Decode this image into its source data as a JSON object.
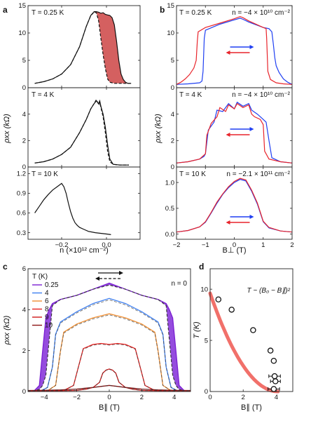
{
  "panels": {
    "a": {
      "label": "a"
    },
    "b": {
      "label": "b"
    },
    "c": {
      "label": "c"
    },
    "d": {
      "label": "d"
    }
  },
  "colors": {
    "red": "#e8242b",
    "blue": "#1f3ff2",
    "fill_red": "#cf4f4f",
    "fill_purple": "#7b1fd6"
  },
  "chart_data": [
    {
      "id": "a-top",
      "type": "area",
      "annotation": "T = 0.25 K",
      "ylabel": "",
      "ylim": [
        0,
        15
      ],
      "yticks": [
        "0",
        "5",
        "10",
        "15"
      ],
      "x": [
        -0.32,
        -0.28,
        -0.24,
        -0.2,
        -0.16,
        -0.12,
        -0.09,
        -0.07,
        -0.055,
        -0.045,
        -0.035,
        -0.025,
        -0.015,
        -0.005,
        0.005,
        0.015,
        0.025,
        0.035,
        0.045,
        0.055,
        0.065,
        0.075,
        0.085,
        0.095,
        0.11
      ],
      "series": [
        {
          "style": "solid",
          "values": [
            0.8,
            1.1,
            1.6,
            2.5,
            4.2,
            7.5,
            11.2,
            13.2,
            13.9,
            13.9,
            13.8,
            13.6,
            13.7,
            13.4,
            13.3,
            13.2,
            12.8,
            11.5,
            8.5,
            5.0,
            2.5,
            1.5,
            1.0,
            0.8,
            0.8
          ]
        },
        {
          "style": "dashed",
          "values": [
            0.8,
            1.1,
            1.6,
            2.5,
            4.2,
            7.5,
            11.2,
            13.2,
            13.8,
            13.7,
            12.2,
            9.0,
            6.0,
            3.5,
            1.6,
            1.0,
            0.9,
            0.8,
            0.8,
            0.8,
            0.8,
            0.8,
            0.8,
            0.8,
            0.8
          ]
        }
      ]
    },
    {
      "id": "a-mid",
      "type": "line",
      "annotation": "T = 4 K",
      "ylabel": "ρxx (kΩ)",
      "ylim": [
        0,
        6
      ],
      "yticks": [
        "0",
        "2",
        "4"
      ],
      "x": [
        -0.32,
        -0.28,
        -0.24,
        -0.2,
        -0.16,
        -0.12,
        -0.09,
        -0.07,
        -0.055,
        -0.045,
        -0.035,
        -0.03,
        -0.025,
        -0.015,
        -0.005,
        0.005,
        0.015,
        0.03,
        0.06,
        0.1
      ],
      "series": [
        {
          "style": "solid",
          "values": [
            0.3,
            0.4,
            0.6,
            0.95,
            1.5,
            2.6,
            3.6,
            4.4,
            4.8,
            5.0,
            4.8,
            5.0,
            4.6,
            4.0,
            3.0,
            1.7,
            0.6,
            0.2,
            0.15,
            0.15
          ]
        },
        {
          "style": "dashed",
          "values": [
            0.3,
            0.4,
            0.6,
            0.95,
            1.5,
            2.6,
            3.6,
            4.4,
            4.8,
            5.1,
            4.7,
            4.9,
            4.5,
            3.8,
            2.6,
            1.2,
            0.4,
            0.2,
            0.15,
            0.15
          ]
        }
      ]
    },
    {
      "id": "a-bot",
      "type": "line",
      "annotation": "T = 10 K",
      "xlabel": "n (×10¹² cm⁻²)",
      "ylabel": "",
      "xlim": [
        -0.35,
        0.15
      ],
      "ylim": [
        0.2,
        1.3
      ],
      "yticks": [
        "0.3",
        "0.6",
        "0.9",
        "1.2"
      ],
      "xticks": [
        "−0.2",
        "0.0"
      ],
      "x": [
        -0.32,
        -0.3,
        -0.28,
        -0.26,
        -0.24,
        -0.22,
        -0.2,
        -0.19,
        -0.18,
        -0.17,
        -0.16,
        -0.15,
        -0.14,
        -0.13,
        -0.12,
        -0.1,
        -0.08,
        -0.05,
        0.0,
        0.02
      ],
      "series": [
        {
          "style": "solid",
          "values": [
            0.6,
            0.7,
            0.8,
            0.88,
            0.95,
            1.0,
            1.05,
            1.0,
            0.9,
            0.75,
            0.62,
            0.52,
            0.45,
            0.41,
            0.38,
            0.35,
            0.32,
            0.3,
            0.28,
            0.27
          ]
        }
      ]
    },
    {
      "id": "b-top",
      "type": "line",
      "annotation_left": "T = 0.25 K",
      "annotation_right": "n = −4 × 10¹⁰ cm⁻²",
      "ylim": [
        0,
        15
      ],
      "yticks": [
        "0",
        "5",
        "10",
        "15"
      ],
      "series": [
        {
          "color": "red",
          "x": [
            -2.0,
            -1.85,
            -1.7,
            -1.55,
            -1.4,
            -1.32,
            -1.28,
            -1.25,
            -1.0,
            -0.5,
            0.0,
            0.2,
            0.3,
            0.5,
            1.0,
            1.1,
            1.12,
            1.16,
            1.25,
            1.45,
            1.7,
            2.0
          ],
          "values": [
            0.6,
            1.0,
            1.6,
            2.4,
            3.6,
            5.0,
            8.5,
            10.2,
            11.0,
            11.8,
            12.6,
            13.0,
            12.8,
            12.2,
            11.0,
            10.8,
            9.0,
            3.0,
            1.5,
            0.9,
            0.7,
            0.6
          ]
        },
        {
          "color": "blue",
          "x": [
            -2.0,
            -1.6,
            -1.2,
            -1.12,
            -1.08,
            -1.04,
            -1.0,
            -0.5,
            0.0,
            0.2,
            0.3,
            0.5,
            1.0,
            1.2,
            1.3,
            1.35,
            1.4,
            1.45,
            1.55,
            1.7,
            1.85,
            2.0
          ],
          "values": [
            0.6,
            0.7,
            0.9,
            1.2,
            3.0,
            9.0,
            10.5,
            11.6,
            12.4,
            12.7,
            12.5,
            12.0,
            11.0,
            10.8,
            10.2,
            8.0,
            5.5,
            4.0,
            2.8,
            1.6,
            1.0,
            0.6
          ]
        }
      ]
    },
    {
      "id": "b-mid",
      "type": "line",
      "annotation_left": "T = 4 K",
      "annotation_right": "n = −4 × 10¹⁰ cm⁻²",
      "ylabel": "ρxx (kΩ)",
      "ylim": [
        0,
        6
      ],
      "yticks": [
        "0",
        "2",
        "4"
      ],
      "series": [
        {
          "color": "red",
          "x": [
            -2.0,
            -1.6,
            -1.2,
            -1.0,
            -0.95,
            -0.8,
            -0.6,
            -0.5,
            -0.3,
            -0.2,
            0.0,
            0.1,
            0.3,
            0.5,
            0.6,
            0.7,
            0.9,
            1.0,
            1.05,
            1.2,
            1.6,
            2.0
          ],
          "values": [
            0.3,
            0.4,
            0.6,
            1.0,
            2.4,
            3.3,
            3.8,
            4.5,
            4.2,
            4.7,
            4.4,
            4.8,
            4.5,
            4.7,
            4.0,
            3.8,
            3.6,
            3.2,
            1.2,
            0.6,
            0.4,
            0.3
          ]
        },
        {
          "color": "blue",
          "x": [
            -2.0,
            -1.6,
            -1.2,
            -1.05,
            -1.0,
            -0.9,
            -0.7,
            -0.6,
            -0.4,
            -0.2,
            0.0,
            0.1,
            0.3,
            0.5,
            0.6,
            0.8,
            1.0,
            1.1,
            1.2,
            1.3,
            1.6,
            2.0
          ],
          "values": [
            0.3,
            0.4,
            0.6,
            0.8,
            1.0,
            2.8,
            3.4,
            4.3,
            4.2,
            4.8,
            4.4,
            4.9,
            4.6,
            4.8,
            4.3,
            4.0,
            3.6,
            3.4,
            2.0,
            0.7,
            0.4,
            0.3
          ]
        }
      ]
    },
    {
      "id": "b-bot",
      "type": "line",
      "annotation_left": "T = 10 K",
      "annotation_right": "n = −2.1 × 10¹¹ cm⁻²",
      "xlabel": "B⊥ (T)",
      "xlim": [
        -2,
        2
      ],
      "ylim": [
        -0.1,
        1.3
      ],
      "yticks": [
        "0.0",
        "0.5",
        "1.0"
      ],
      "xticks": [
        "−2",
        "−1",
        "0",
        "1",
        "2"
      ],
      "series": [
        {
          "color": "red",
          "x": [
            -2.0,
            -1.6,
            -1.2,
            -1.0,
            -0.8,
            -0.6,
            -0.4,
            -0.2,
            0.0,
            0.2,
            0.4,
            0.6,
            0.8,
            1.0,
            1.2,
            1.6,
            2.0
          ],
          "values": [
            0.04,
            0.07,
            0.14,
            0.24,
            0.42,
            0.62,
            0.78,
            0.92,
            1.02,
            1.08,
            1.05,
            0.85,
            0.6,
            0.25,
            0.13,
            0.06,
            0.04
          ]
        },
        {
          "color": "blue",
          "x": [
            -2.0,
            -1.6,
            -1.2,
            -1.0,
            -0.8,
            -0.6,
            -0.4,
            -0.2,
            0.0,
            0.2,
            0.4,
            0.6,
            0.8,
            1.0,
            1.2,
            1.6,
            2.0
          ],
          "values": [
            0.04,
            0.07,
            0.14,
            0.23,
            0.41,
            0.6,
            0.77,
            0.9,
            1.0,
            1.06,
            1.03,
            0.83,
            0.58,
            0.24,
            0.12,
            0.06,
            0.04
          ]
        }
      ]
    },
    {
      "id": "c",
      "type": "line",
      "legend_title": "T (K)",
      "annotation_right": "n = 0",
      "xlabel": "B∥ (T)",
      "ylabel": "ρxx (kΩ)",
      "xlim": [
        -5,
        5
      ],
      "ylim": [
        0,
        6
      ],
      "xticks": [
        "−4",
        "−2",
        "0",
        "2",
        "4"
      ],
      "yticks": [
        "0",
        "2",
        "4",
        "6"
      ],
      "series": [
        {
          "name": "0.25",
          "color": "#7a1fd2",
          "x": [
            -5,
            -4.6,
            -4.3,
            -4.1,
            -3.9,
            -3.7,
            -3.5,
            -3.0,
            -2.0,
            -1.0,
            0.0,
            1.0,
            2.0,
            3.0,
            3.5,
            3.7,
            3.9,
            4.1,
            4.3,
            4.6,
            5
          ],
          "values": [
            0.02,
            0.05,
            0.3,
            2.0,
            3.6,
            4.0,
            4.3,
            4.5,
            4.7,
            5.0,
            5.3,
            5.0,
            4.7,
            4.5,
            4.3,
            4.0,
            3.6,
            2.0,
            0.3,
            0.05,
            0.02
          ],
          "dashed_values": [
            0.02,
            0.05,
            0.1,
            0.3,
            0.8,
            2.5,
            4.2,
            4.5,
            4.7,
            5.0,
            5.2,
            5.0,
            4.7,
            4.5,
            4.2,
            2.5,
            0.8,
            0.3,
            0.1,
            0.05,
            0.02
          ]
        },
        {
          "name": "4",
          "color": "#3e7ff0",
          "x": [
            -5,
            -4.2,
            -3.8,
            -3.5,
            -3.3,
            -3.0,
            -2.0,
            -1.0,
            0.0,
            1.0,
            2.0,
            3.0,
            3.3,
            3.5,
            3.8,
            4.2,
            5
          ],
          "values": [
            0.02,
            0.04,
            0.2,
            1.2,
            2.8,
            3.4,
            3.9,
            4.3,
            4.55,
            4.3,
            3.9,
            3.4,
            2.8,
            1.2,
            0.2,
            0.04,
            0.02
          ]
        },
        {
          "name": "6",
          "color": "#ef8f34",
          "x": [
            -5,
            -3.8,
            -3.3,
            -3.0,
            -2.8,
            -2.0,
            -1.0,
            0.0,
            1.0,
            2.0,
            2.8,
            3.0,
            3.3,
            3.8,
            5
          ],
          "values": [
            0.02,
            0.04,
            0.3,
            2.0,
            2.9,
            3.3,
            3.6,
            3.8,
            3.6,
            3.3,
            2.9,
            2.0,
            0.3,
            0.04,
            0.02
          ]
        },
        {
          "name": "8",
          "color": "#e6201f",
          "x": [
            -5,
            -2.8,
            -2.2,
            -1.9,
            -1.6,
            -1.0,
            -0.5,
            0.0,
            0.5,
            1.0,
            1.6,
            1.9,
            2.2,
            2.8,
            5
          ],
          "values": [
            0.02,
            0.05,
            0.3,
            1.2,
            2.1,
            2.3,
            2.35,
            2.3,
            2.35,
            2.3,
            2.1,
            1.2,
            0.3,
            0.05,
            0.02
          ]
        },
        {
          "name": "9",
          "color": "#d01a1a",
          "x": [
            -5,
            -2.0,
            -1.4,
            -1.0,
            -0.6,
            -0.4,
            -0.2,
            0.0,
            0.2,
            0.4,
            0.6,
            1.0,
            1.4,
            2.0,
            5
          ],
          "values": [
            0.02,
            0.05,
            0.12,
            0.2,
            0.45,
            0.9,
            1.05,
            1.1,
            1.05,
            0.9,
            0.45,
            0.2,
            0.12,
            0.05,
            0.02
          ]
        },
        {
          "name": "10",
          "color": "#8e1414",
          "x": [
            -5,
            -4,
            -3,
            -2,
            -1.5,
            -1.0,
            -0.5,
            0.0,
            0.5,
            1.0,
            1.5,
            2,
            3,
            4,
            5
          ],
          "values": [
            0.05,
            0.06,
            0.08,
            0.12,
            0.16,
            0.2,
            0.25,
            0.3,
            0.25,
            0.2,
            0.16,
            0.12,
            0.08,
            0.06,
            0.05
          ]
        }
      ]
    },
    {
      "id": "d",
      "type": "scatter",
      "fit_label": "T ~ (B₀ − B∥)²",
      "xlabel": "B∥ (T)",
      "ylabel": "T (K)",
      "xlim": [
        0,
        5
      ],
      "ylim": [
        0,
        12
      ],
      "xticks": [
        "0",
        "2",
        "4"
      ],
      "yticks": [
        "0",
        "5",
        "10"
      ],
      "points": [
        {
          "x": 0.5,
          "y": 9.0,
          "xerr": 0
        },
        {
          "x": 1.3,
          "y": 8.0,
          "xerr": 0
        },
        {
          "x": 2.6,
          "y": 6.0,
          "xerr": 0
        },
        {
          "x": 3.65,
          "y": 4.0,
          "xerr": 0
        },
        {
          "x": 3.85,
          "y": 3.0,
          "xerr": 0
        },
        {
          "x": 3.9,
          "y": 1.5,
          "xerr": 0.35
        },
        {
          "x": 3.95,
          "y": 1.0,
          "xerr": 0.3
        },
        {
          "x": 3.85,
          "y": 0.25,
          "xerr": 0.35
        }
      ],
      "fit": {
        "B0": 4.1,
        "T0": 9.6
      }
    }
  ]
}
